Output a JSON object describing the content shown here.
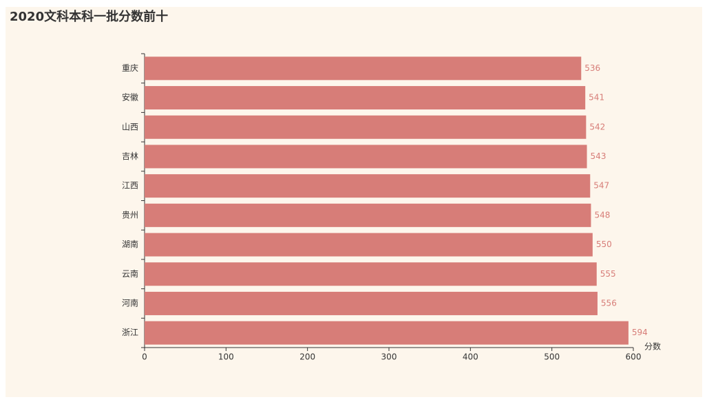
{
  "chart_data": {
    "type": "hbar",
    "title": "2020文科本科一批分数前十",
    "categories": [
      "重庆",
      "安徽",
      "山西",
      "吉林",
      "江西",
      "贵州",
      "湖南",
      "云南",
      "河南",
      "浙江"
    ],
    "values": [
      536,
      541,
      542,
      543,
      547,
      548,
      550,
      555,
      556,
      594
    ],
    "color": "#d77d78",
    "x_label": "分数",
    "xlim": [
      0,
      600
    ],
    "xticks": [
      0,
      100,
      200,
      300,
      400,
      500,
      600
    ]
  }
}
